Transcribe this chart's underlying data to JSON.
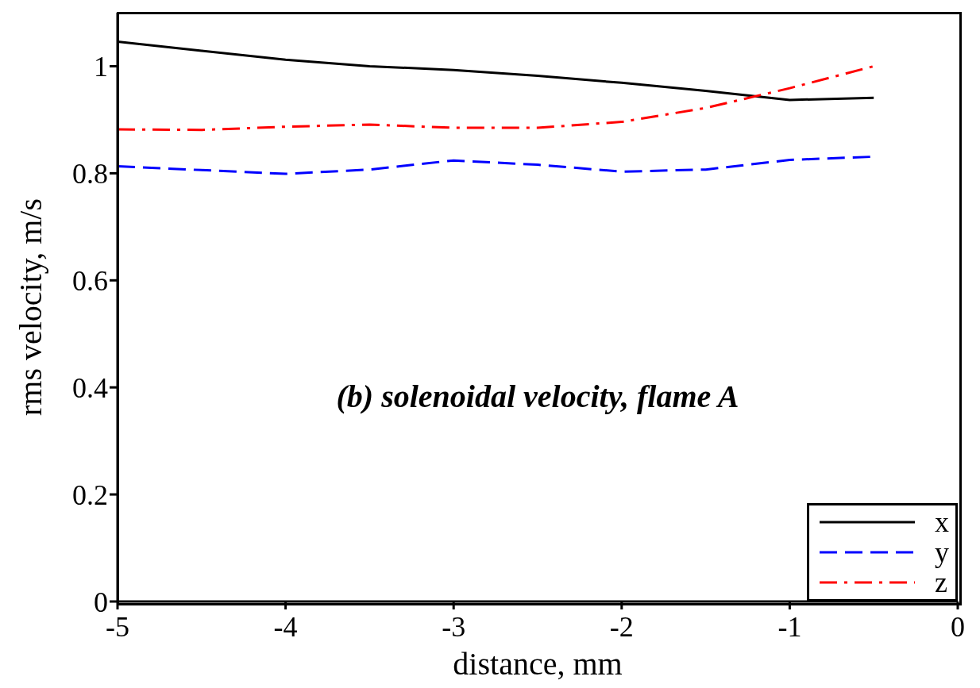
{
  "chart_data": {
    "type": "line",
    "xlabel": "distance, mm",
    "ylabel": "rms velocity, m/s",
    "annotations": [
      "(b) solenoidal velocity, flame A"
    ],
    "x": [
      -5,
      -4.5,
      -4,
      -3.5,
      -3,
      -2.5,
      -2,
      -1.5,
      -1,
      -0.5
    ],
    "series": [
      {
        "name": "x",
        "color": "#000000",
        "line_style": "solid",
        "values": [
          1.046,
          1.029,
          1.012,
          1.0,
          0.993,
          0.982,
          0.969,
          0.954,
          0.937,
          0.941
        ]
      },
      {
        "name": "y",
        "color": "#0000ff",
        "line_style": "dashed",
        "values": [
          0.813,
          0.806,
          0.799,
          0.807,
          0.824,
          0.816,
          0.803,
          0.807,
          0.825,
          0.831
        ]
      },
      {
        "name": "z",
        "color": "#ff0000",
        "line_style": "dashdot",
        "values": [
          0.882,
          0.881,
          0.887,
          0.891,
          0.885,
          0.885,
          0.896,
          0.922,
          0.959,
          1.0
        ]
      }
    ],
    "xlim": [
      -5,
      0
    ],
    "xticks": [
      -5,
      -4,
      -3,
      -2,
      -1,
      0
    ],
    "ylim": [
      0,
      1.1
    ],
    "yticks": [
      0,
      0.2,
      0.4,
      0.6,
      0.8,
      1
    ],
    "grid": false,
    "legend": "bottom right",
    "marker": "none"
  }
}
